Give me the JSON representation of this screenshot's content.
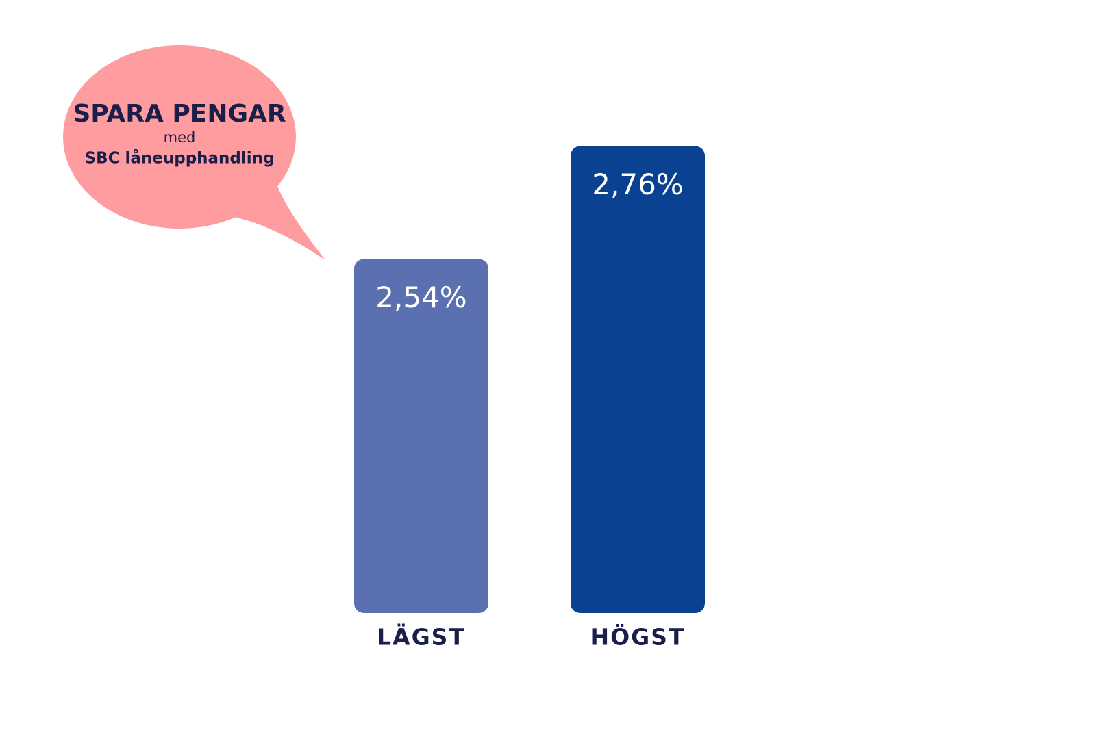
{
  "chart_data": {
    "type": "bar",
    "categories": [
      "LÄGST",
      "HÖGST"
    ],
    "values": [
      2.54,
      2.76
    ],
    "value_labels": [
      "2,54%",
      "2,76%"
    ],
    "colors": [
      "#5b70b0",
      "#0a4191"
    ],
    "ylim": [
      1.85,
      2.9
    ],
    "annotation": [
      "SPARA PENGAR",
      "med",
      "SBC låneupphandling"
    ],
    "annotation_color": "#ff9c9f"
  }
}
